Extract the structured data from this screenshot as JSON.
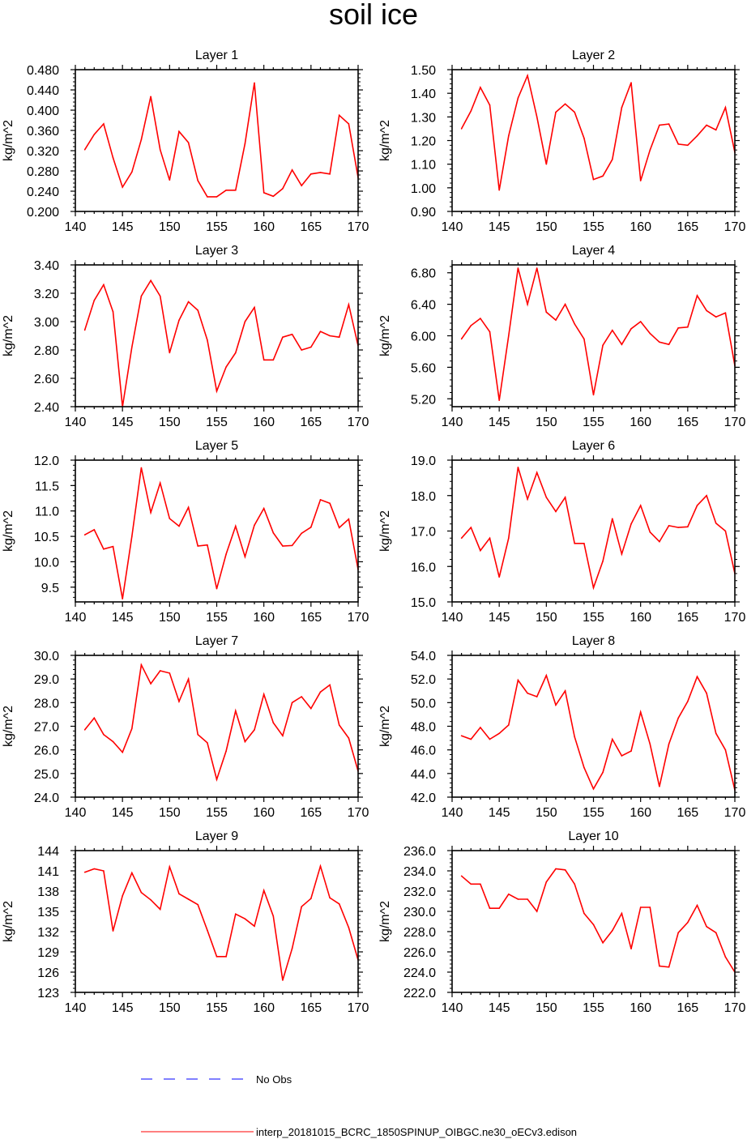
{
  "chart_data": {
    "type": "line",
    "title": "soil ice",
    "x": [
      141,
      142,
      143,
      144,
      145,
      146,
      147,
      148,
      149,
      150,
      151,
      152,
      153,
      154,
      155,
      156,
      157,
      158,
      159,
      160,
      161,
      162,
      163,
      164,
      165,
      166,
      167,
      168,
      169,
      170
    ],
    "xlim": [
      140,
      170
    ],
    "xticks": [
      "140",
      "145",
      "150",
      "155",
      "160",
      "165",
      "170"
    ],
    "ylabel": "kg/m^2",
    "grid": false,
    "legend": [
      {
        "label": "No Obs",
        "color": "#0000ff",
        "style": "dashed"
      },
      {
        "label": "interp_20181015_BCRC_1850SPINUP_OIBGC.ne30_oECv3.edison",
        "color": "#ff0000",
        "style": "solid"
      }
    ],
    "panels": [
      {
        "title": "Layer 1",
        "ylim": [
          0.2,
          0.48
        ],
        "yticks": [
          "0.480",
          "0.440",
          "0.400",
          "0.360",
          "0.320",
          "0.280",
          "0.240",
          "0.200"
        ],
        "ytick_values": [
          0.48,
          0.44,
          0.4,
          0.36,
          0.32,
          0.28,
          0.24,
          0.2
        ],
        "values": [
          0.322,
          0.352,
          0.373,
          0.306,
          0.248,
          0.278,
          0.342,
          0.427,
          0.322,
          0.262,
          0.358,
          0.336,
          0.261,
          0.229,
          0.229,
          0.242,
          0.242,
          0.334,
          0.454,
          0.237,
          0.23,
          0.245,
          0.282,
          0.251,
          0.274,
          0.277,
          0.274,
          0.39,
          0.373,
          0.267
        ]
      },
      {
        "title": "Layer 2",
        "ylim": [
          0.9,
          1.5
        ],
        "yticks": [
          "1.50",
          "1.40",
          "1.30",
          "1.20",
          "1.10",
          "1.00",
          "0.90"
        ],
        "ytick_values": [
          1.5,
          1.4,
          1.3,
          1.2,
          1.1,
          1.0,
          0.9
        ],
        "values": [
          1.25,
          1.325,
          1.425,
          1.35,
          0.99,
          1.22,
          1.38,
          1.475,
          1.3,
          1.1,
          1.32,
          1.355,
          1.32,
          1.21,
          1.035,
          1.05,
          1.12,
          1.34,
          1.445,
          1.03,
          1.16,
          1.265,
          1.27,
          1.185,
          1.18,
          1.22,
          1.265,
          1.245,
          1.34,
          1.15
        ]
      },
      {
        "title": "Layer 3",
        "ylim": [
          2.4,
          3.4
        ],
        "yticks": [
          "3.40",
          "3.20",
          "3.00",
          "2.80",
          "2.60",
          "2.40"
        ],
        "ytick_values": [
          3.4,
          3.2,
          3.0,
          2.8,
          2.6,
          2.4
        ],
        "values": [
          2.94,
          3.15,
          3.26,
          3.07,
          2.4,
          2.82,
          3.18,
          3.29,
          3.18,
          2.78,
          3.01,
          3.14,
          3.08,
          2.87,
          2.51,
          2.68,
          2.78,
          3.0,
          3.1,
          2.73,
          2.73,
          2.89,
          2.91,
          2.8,
          2.82,
          2.93,
          2.9,
          2.89,
          3.12,
          2.83
        ]
      },
      {
        "title": "Layer 4",
        "ylim": [
          5.1,
          6.9
        ],
        "yticks": [
          "6.80",
          "6.40",
          "6.00",
          "5.60",
          "5.20"
        ],
        "ytick_values": [
          6.8,
          6.4,
          6.0,
          5.6,
          5.2
        ],
        "values": [
          5.96,
          6.13,
          6.22,
          6.05,
          5.18,
          6.0,
          6.86,
          6.4,
          6.86,
          6.3,
          6.2,
          6.4,
          6.15,
          5.96,
          5.25,
          5.88,
          6.07,
          5.89,
          6.09,
          6.18,
          6.03,
          5.92,
          5.89,
          6.1,
          6.11,
          6.51,
          6.32,
          6.24,
          6.29,
          5.62
        ]
      },
      {
        "title": "Layer 5",
        "ylim": [
          9.21,
          12.0
        ],
        "yticks": [
          "12.0",
          "11.5",
          "11.0",
          "10.5",
          "10.0",
          "9.5"
        ],
        "ytick_values": [
          12.0,
          11.5,
          11.0,
          10.5,
          10.0,
          9.5
        ],
        "values": [
          10.53,
          10.63,
          10.25,
          10.3,
          9.27,
          10.5,
          11.85,
          10.97,
          11.55,
          10.85,
          10.7,
          11.07,
          10.31,
          10.33,
          9.47,
          10.15,
          10.7,
          10.1,
          10.72,
          11.05,
          10.57,
          10.31,
          10.32,
          10.56,
          10.68,
          11.22,
          11.15,
          10.67,
          10.84,
          9.85
        ]
      },
      {
        "title": "Layer 6",
        "ylim": [
          15.0,
          19.0
        ],
        "yticks": [
          "19.0",
          "18.0",
          "17.0",
          "16.0",
          "15.0"
        ],
        "ytick_values": [
          19,
          18,
          17,
          16,
          15
        ],
        "values": [
          16.8,
          17.1,
          16.45,
          16.8,
          15.7,
          16.8,
          18.8,
          17.9,
          18.65,
          17.95,
          17.55,
          17.95,
          16.65,
          16.65,
          15.4,
          16.15,
          17.35,
          16.35,
          17.2,
          17.72,
          16.97,
          16.7,
          17.15,
          17.1,
          17.12,
          17.72,
          18.0,
          17.22,
          17.0,
          15.8
        ]
      },
      {
        "title": "Layer 7",
        "ylim": [
          24.0,
          30.0
        ],
        "yticks": [
          "30.0",
          "29.0",
          "28.0",
          "27.0",
          "26.0",
          "25.0",
          "24.0"
        ],
        "ytick_values": [
          30,
          29,
          28,
          27,
          26,
          25,
          24
        ],
        "values": [
          26.85,
          27.35,
          26.65,
          26.35,
          25.9,
          26.9,
          29.6,
          28.8,
          29.35,
          29.25,
          28.05,
          29.0,
          26.65,
          26.3,
          24.75,
          25.95,
          27.65,
          26.35,
          26.85,
          28.35,
          27.15,
          26.6,
          28.0,
          28.25,
          27.75,
          28.45,
          28.75,
          27.05,
          26.5,
          25.1
        ]
      },
      {
        "title": "Layer 8",
        "ylim": [
          42.0,
          54.0
        ],
        "yticks": [
          "54.0",
          "52.0",
          "50.0",
          "48.0",
          "46.0",
          "44.0",
          "42.0"
        ],
        "ytick_values": [
          54,
          52,
          50,
          48,
          46,
          44,
          42
        ],
        "values": [
          47.2,
          46.9,
          47.9,
          46.9,
          47.4,
          48.1,
          51.9,
          50.8,
          50.5,
          52.3,
          49.8,
          51.0,
          47.1,
          44.5,
          42.7,
          44.1,
          46.9,
          45.5,
          45.9,
          49.2,
          46.5,
          42.9,
          46.5,
          48.7,
          50.1,
          52.2,
          50.8,
          47.4,
          46.0,
          42.6
        ]
      },
      {
        "title": "Layer 9",
        "ylim": [
          123,
          144
        ],
        "yticks": [
          "144",
          "141",
          "138",
          "135",
          "132",
          "129",
          "126",
          "123"
        ],
        "ytick_values": [
          144,
          141,
          138,
          135,
          132,
          129,
          126,
          123
        ],
        "values": [
          140.8,
          141.3,
          141.0,
          132.1,
          137.3,
          140.7,
          137.8,
          136.7,
          135.3,
          141.6,
          137.6,
          136.8,
          136.0,
          132.2,
          128.3,
          128.3,
          134.6,
          133.9,
          132.8,
          138.1,
          134.3,
          124.8,
          129.5,
          135.7,
          136.9,
          141.7,
          137.0,
          136.1,
          132.6,
          127.8
        ]
      },
      {
        "title": "Layer 10",
        "ylim": [
          222,
          236
        ],
        "yticks": [
          "236.0",
          "234.0",
          "232.0",
          "230.0",
          "228.0",
          "226.0",
          "224.0",
          "222.0"
        ],
        "ytick_values": [
          236,
          234,
          232,
          230,
          228,
          226,
          224,
          222
        ],
        "values": [
          233.5,
          232.7,
          232.7,
          230.3,
          230.3,
          231.7,
          231.2,
          231.2,
          230.0,
          232.9,
          234.2,
          234.1,
          232.7,
          229.8,
          228.7,
          226.9,
          228.1,
          229.8,
          226.3,
          230.4,
          230.4,
          224.6,
          224.5,
          227.9,
          228.9,
          230.6,
          228.5,
          227.9,
          225.5,
          224.0
        ]
      }
    ]
  }
}
